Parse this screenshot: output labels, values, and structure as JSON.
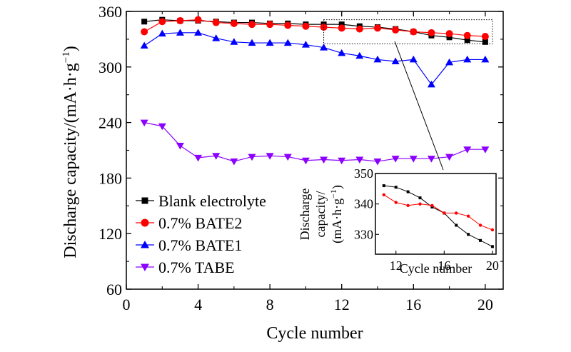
{
  "chart_data": {
    "type": "line",
    "title": "",
    "xlabel": "Cycle number",
    "ylabel": "Discharge capacity/(mA·h·g",
    "ylabel_sup": "−1",
    "ylabel_close": ")",
    "xlim": [
      0,
      21
    ],
    "ylim": [
      60,
      360
    ],
    "xticks": [
      0,
      4,
      8,
      12,
      16,
      20
    ],
    "yticks": [
      60,
      120,
      180,
      240,
      300,
      360
    ],
    "x": [
      1,
      2,
      3,
      4,
      5,
      6,
      7,
      8,
      9,
      10,
      11,
      12,
      13,
      14,
      15,
      16,
      17,
      18,
      19,
      20
    ],
    "series": [
      {
        "name": "Blank electrolyte",
        "color": "#000000",
        "marker": "square",
        "values": [
          349,
          351,
          350,
          350,
          349,
          348,
          348,
          347,
          347,
          346,
          346,
          346,
          344,
          343,
          341,
          338,
          334,
          332,
          329,
          327
        ]
      },
      {
        "name": "0.7% BATE2",
        "color": "#ff0000",
        "marker": "circle",
        "values": [
          338,
          349,
          350,
          351,
          348,
          347,
          346,
          346,
          345,
          344,
          343,
          342,
          341,
          342,
          340,
          338,
          337,
          336,
          334,
          333
        ]
      },
      {
        "name": "0.7% BATE1",
        "color": "#0000ff",
        "marker": "triangle-up",
        "values": [
          323,
          336,
          337,
          337,
          331,
          327,
          326,
          326,
          326,
          324,
          321,
          315,
          312,
          308,
          306,
          308,
          281,
          305,
          308,
          308
        ]
      },
      {
        "name": "0.7% TABE",
        "color": "#8b00ff",
        "marker": "triangle-down",
        "values": [
          240,
          236,
          215,
          202,
          204,
          198,
          203,
          204,
          203,
          199,
          200,
          199,
          200,
          198,
          201,
          201,
          201,
          203,
          211,
          211
        ]
      }
    ],
    "legend_position": "lower-left",
    "zoom_box": {
      "x_range": [
        11,
        20.4
      ],
      "y_range": [
        325,
        351
      ]
    },
    "inset": {
      "xlabel": "Cycle number",
      "ylabel_line1": "Discharge",
      "ylabel_line2": "capacity/",
      "ylabel_line3": "(mA·h·g",
      "ylabel_sup": "−1",
      "ylabel_close": ")",
      "xlim": [
        10.3,
        20.3
      ],
      "ylim": [
        323.5,
        350
      ],
      "xticks": [
        12,
        16,
        20
      ],
      "yticks": [
        330,
        340,
        350
      ],
      "x": [
        11,
        12,
        13,
        14,
        15,
        16,
        17,
        18,
        19,
        20
      ],
      "series": [
        {
          "name": "Blank electrolyte",
          "color": "#000000",
          "values": [
            346,
            345.5,
            344,
            342,
            339,
            337,
            333,
            330,
            328,
            326
          ]
        },
        {
          "name": "0.7% BATE2",
          "color": "#ff0000",
          "values": [
            343,
            340.5,
            339.5,
            340,
            339.5,
            337,
            337,
            336,
            333,
            331.5
          ]
        }
      ]
    }
  }
}
